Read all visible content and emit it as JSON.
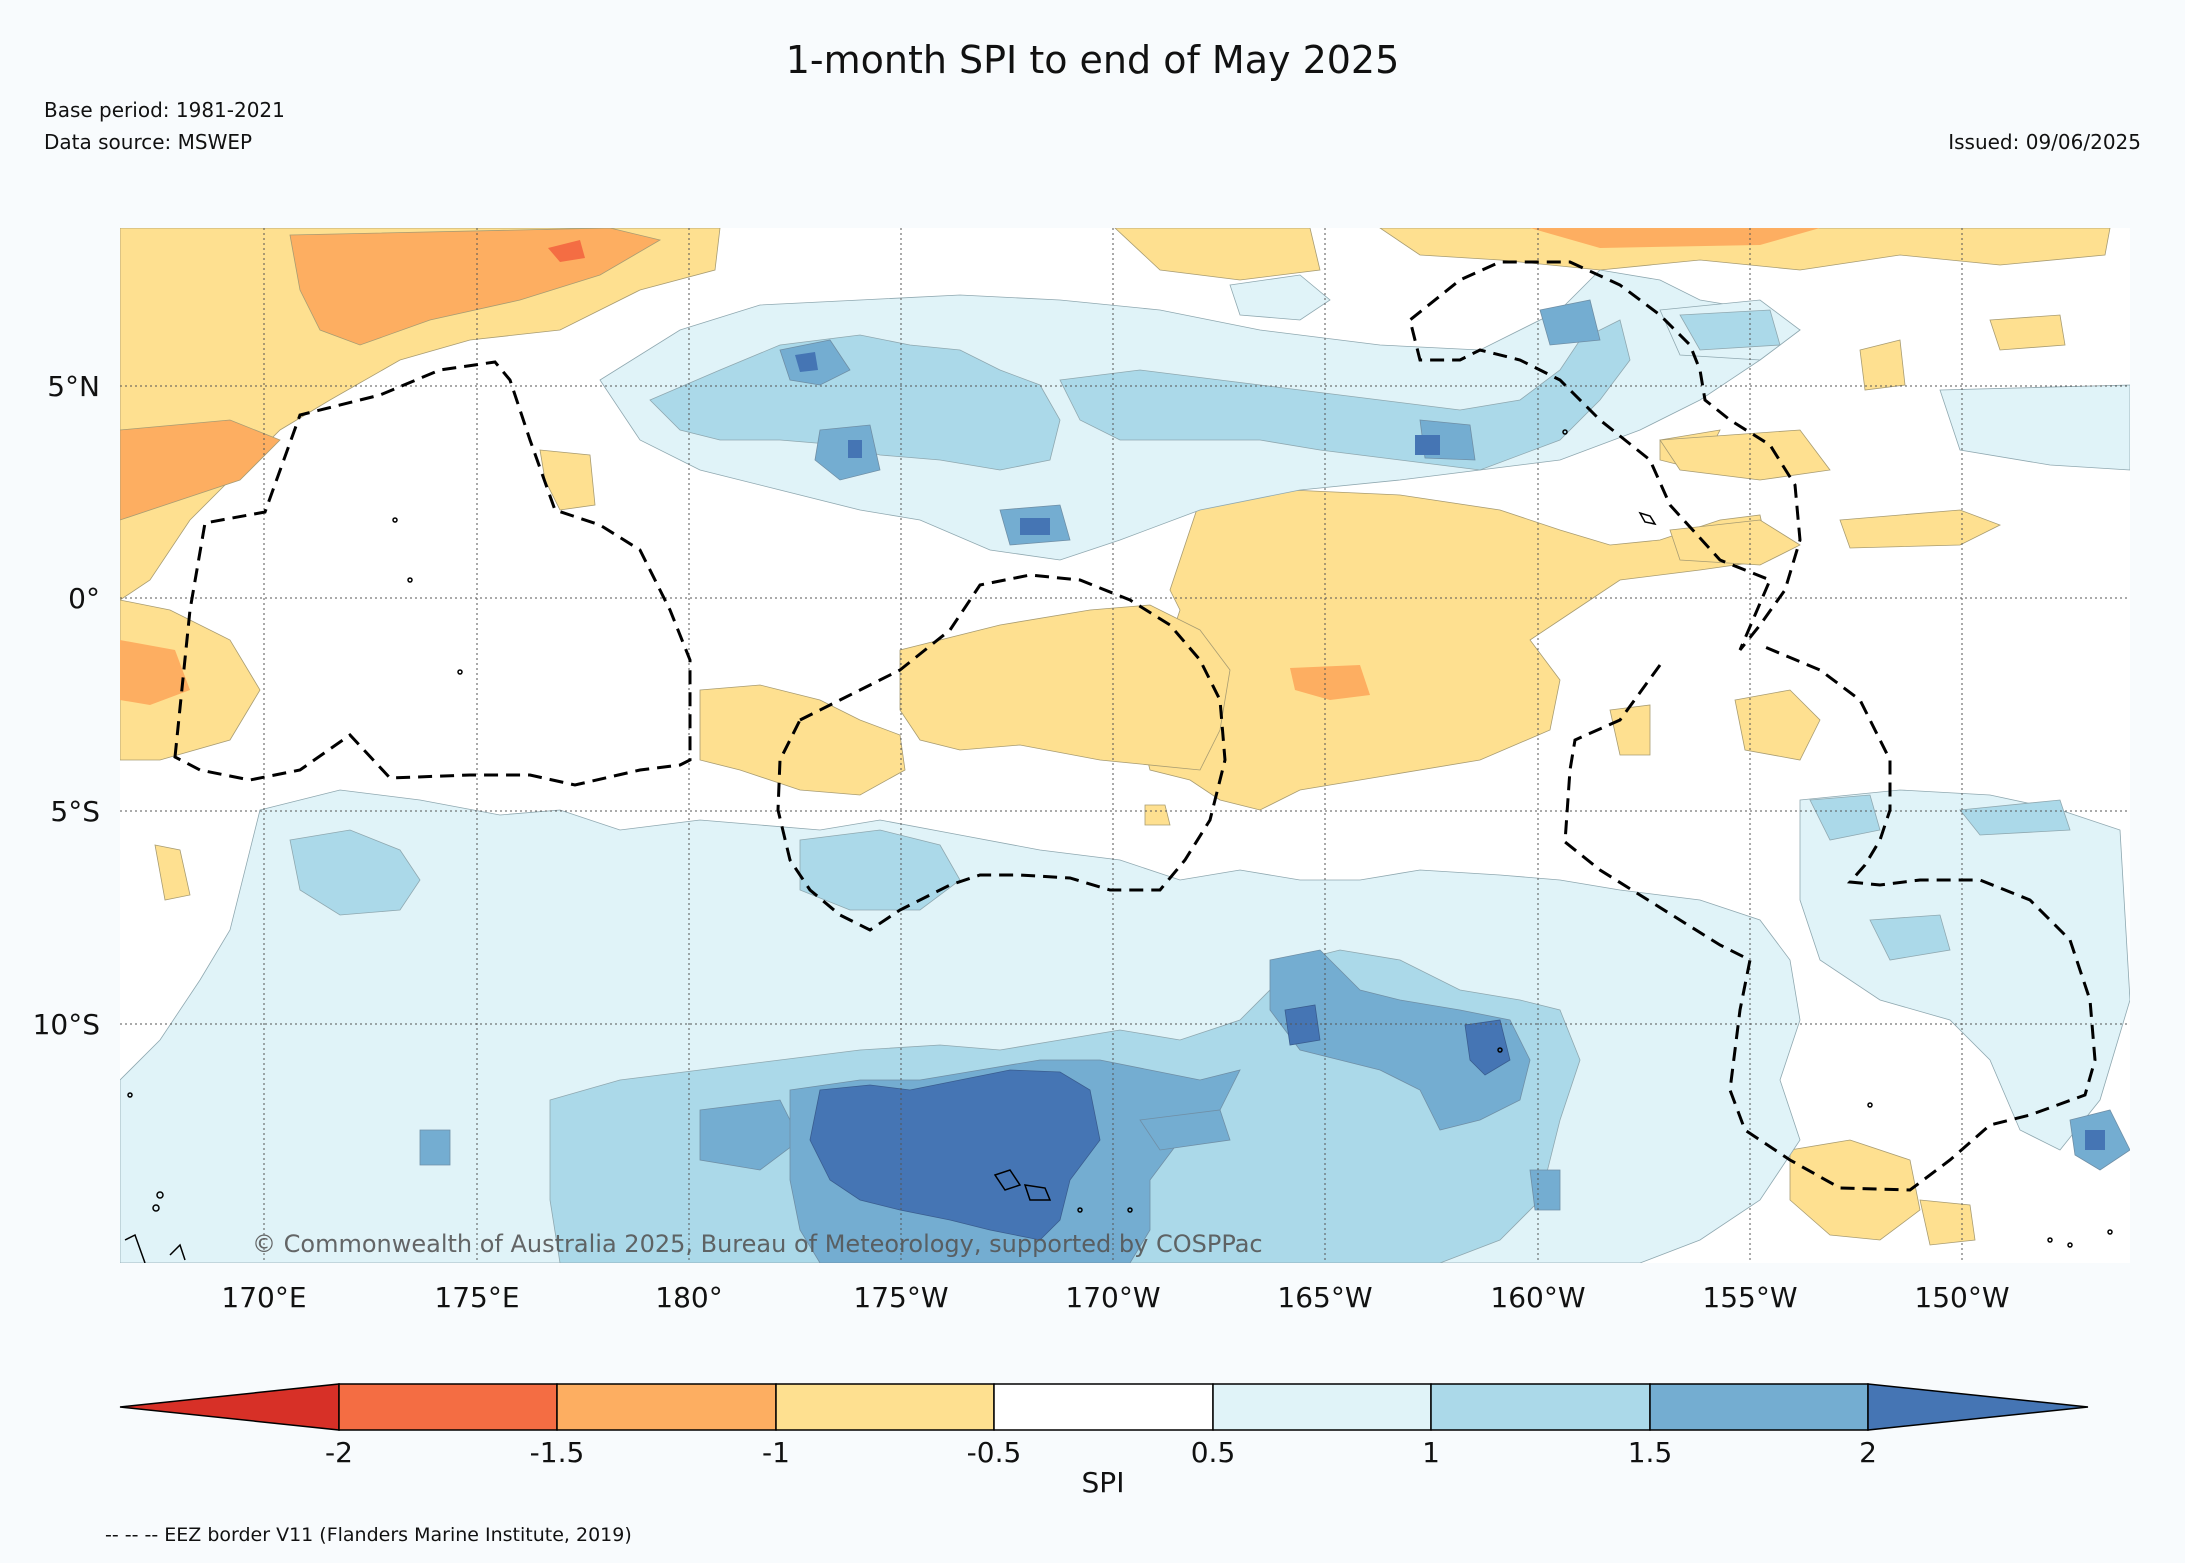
{
  "title": "1-month SPI to end of May 2025",
  "base_period": "Base period: 1981-2021",
  "data_source": "Data source: MSWEP",
  "issued": "Issued: 09/06/2025",
  "copyright": "© Commonwealth of Australia 2025, Bureau of Meteorology, supported by COSPPac",
  "footnote": "-- -- -- EEZ border V11 (Flanders Marine Institute, 2019)",
  "map": {
    "lon_labels": [
      "170°E",
      "175°E",
      "180°",
      "175°W",
      "170°W",
      "165°W",
      "160°W",
      "155°W",
      "150°W"
    ],
    "lat_labels": [
      "5°N",
      "0°",
      "5°S",
      "10°S"
    ],
    "grid": "dotted",
    "border_style": "dashed"
  },
  "colorbar": {
    "label": "SPI",
    "ticks": [
      "-2",
      "-1.5",
      "-1",
      "-0.5",
      "0.5",
      "1",
      "1.5",
      "2"
    ],
    "colors": {
      "below_-2": "#d73027",
      "-2_-1.5": "#f46d43",
      "-1.5_-1": "#fdae61",
      "-1_-0.5": "#fee090",
      "-0.5_0.5": "#ffffff",
      "0.5_1": "#e0f3f8",
      "1_1.5": "#abd9e9",
      "1.5_2": "#74add1",
      "above_2": "#4575b4"
    }
  }
}
